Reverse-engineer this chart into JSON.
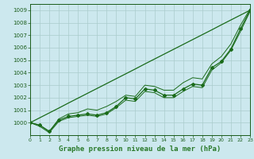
{
  "hours": [
    0,
    1,
    2,
    3,
    4,
    5,
    6,
    7,
    8,
    9,
    10,
    11,
    12,
    13,
    14,
    15,
    16,
    17,
    18,
    19,
    20,
    21,
    22,
    23
  ],
  "pressure_main": [
    1000.0,
    999.8,
    999.3,
    1000.2,
    1000.5,
    1000.6,
    1000.7,
    1000.6,
    1000.8,
    1001.3,
    1002.0,
    1001.9,
    1002.7,
    1002.6,
    1002.2,
    1002.2,
    1002.7,
    1003.1,
    1003.0,
    1004.4,
    1004.9,
    1005.9,
    1007.5,
    1009.0
  ],
  "pressure_high": [
    1000.0,
    999.8,
    999.3,
    1000.3,
    1000.7,
    1000.8,
    1001.1,
    1001.0,
    1001.3,
    1001.7,
    1002.2,
    1002.1,
    1003.0,
    1002.9,
    1002.6,
    1002.6,
    1003.2,
    1003.6,
    1003.5,
    1004.7,
    1005.3,
    1006.3,
    1007.8,
    1009.1
  ],
  "pressure_low": [
    1000.0,
    999.7,
    999.2,
    1000.1,
    1000.4,
    1000.5,
    1000.6,
    1000.5,
    1000.7,
    1001.2,
    1001.8,
    1001.7,
    1002.5,
    1002.4,
    1002.0,
    1002.0,
    1002.5,
    1002.9,
    1002.8,
    1004.2,
    1004.8,
    1005.8,
    1007.3,
    1008.9
  ],
  "pressure_trend": [
    1000.0,
    1000.39,
    1000.78,
    1001.17,
    1001.57,
    1001.96,
    1002.35,
    1002.74,
    1003.13,
    1003.52,
    1003.91,
    1004.3,
    1004.7,
    1005.09,
    1005.48,
    1005.87,
    1006.26,
    1006.65,
    1007.04,
    1007.43,
    1007.83,
    1008.22,
    1008.61,
    1009.0
  ],
  "ylim_min": 999.0,
  "ylim_max": 1009.5,
  "yticks": [
    1000,
    1001,
    1002,
    1003,
    1004,
    1005,
    1006,
    1007,
    1008,
    1009
  ],
  "xticks": [
    0,
    1,
    2,
    3,
    4,
    5,
    6,
    7,
    8,
    9,
    10,
    11,
    12,
    13,
    14,
    15,
    16,
    17,
    18,
    19,
    20,
    21,
    22,
    23
  ],
  "xlabel": "Graphe pression niveau de la mer (hPa)",
  "line_color": "#1a6b1a",
  "bg_color": "#cce8ee",
  "grid_color": "#aacccc",
  "text_color": "#1a5c1a",
  "label_bg": "#2a7a2a"
}
